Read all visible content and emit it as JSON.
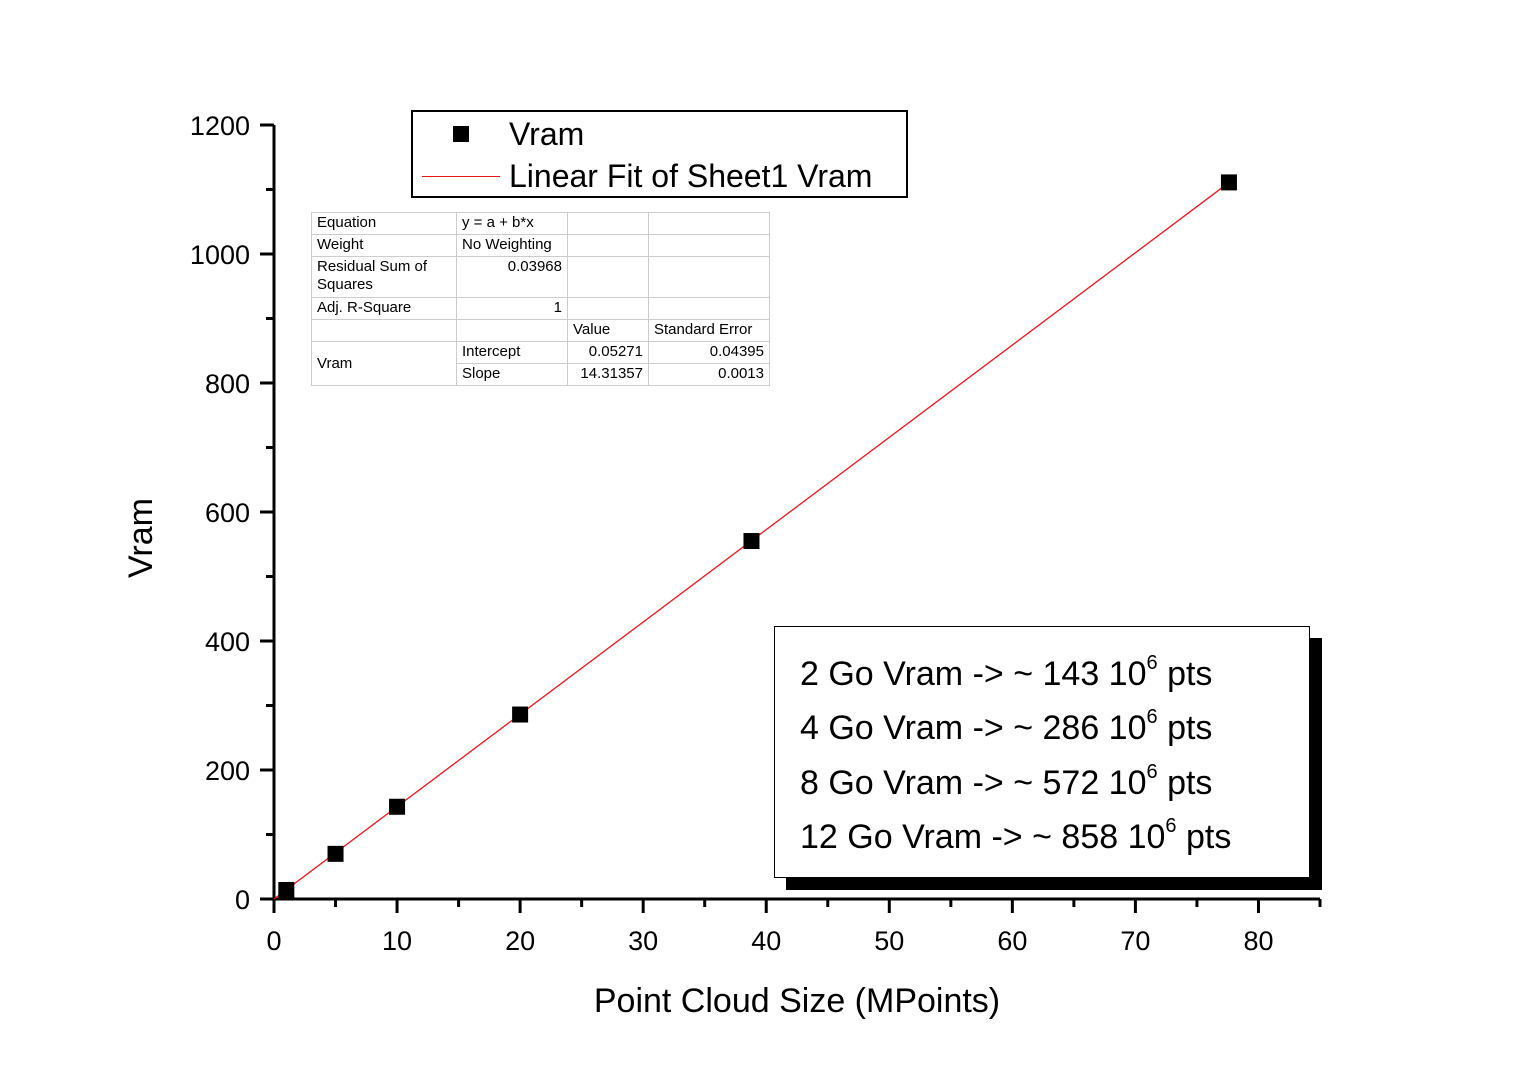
{
  "chart_data": {
    "type": "scatter",
    "title": "",
    "xlabel": "Point Cloud Size (MPoints)",
    "ylabel": "Vram",
    "xlim": [
      0,
      85
    ],
    "ylim": [
      0,
      1200
    ],
    "xticks": [
      "0",
      "10",
      "20",
      "30",
      "40",
      "50",
      "60",
      "70",
      "80"
    ],
    "yticks": [
      "0",
      "200",
      "400",
      "600",
      "800",
      "1000",
      "1200"
    ],
    "grid": false,
    "series": [
      {
        "name": "Vram",
        "kind": "scatter",
        "color": "#000000",
        "x": [
          1,
          5,
          10,
          20,
          38.8,
          77.6
        ],
        "y": [
          14,
          70,
          143,
          286,
          555,
          1111
        ]
      },
      {
        "name": "Linear Fit of Sheet1 Vram",
        "kind": "line",
        "color": "#e8141c",
        "intercept": 0.05271,
        "slope": 14.31357,
        "xrange": [
          0,
          77.6
        ]
      }
    ],
    "legend": {
      "placement": "top-left",
      "entries": [
        "Vram",
        "Linear Fit of Sheet1 Vram"
      ]
    },
    "fit_table": {
      "rows": [
        [
          "Equation",
          "y = a + b*x",
          "",
          ""
        ],
        [
          "Weight",
          "No Weighting",
          "",
          ""
        ],
        [
          "Residual Sum of Squares",
          "0.03968",
          "",
          ""
        ],
        [
          "Adj. R-Square",
          "1",
          "",
          ""
        ],
        [
          "",
          "",
          "Value",
          "Standard Error"
        ],
        [
          "Vram",
          "Intercept",
          "0.05271",
          "0.04395"
        ],
        [
          "",
          "Slope",
          "14.31357",
          "0.0013"
        ]
      ]
    },
    "annotation": [
      {
        "pre": "2 Go Vram -> ~ 143 10",
        "sup": "6",
        "post": " pts"
      },
      {
        "pre": "4 Go Vram -> ~ 286 10",
        "sup": "6",
        "post": " pts"
      },
      {
        "pre": "8 Go Vram -> ~ 572 10",
        "sup": "6",
        "post": " pts"
      },
      {
        "pre": "12 Go Vram -> ~ 858 10",
        "sup": "6",
        "post": " pts"
      }
    ]
  }
}
